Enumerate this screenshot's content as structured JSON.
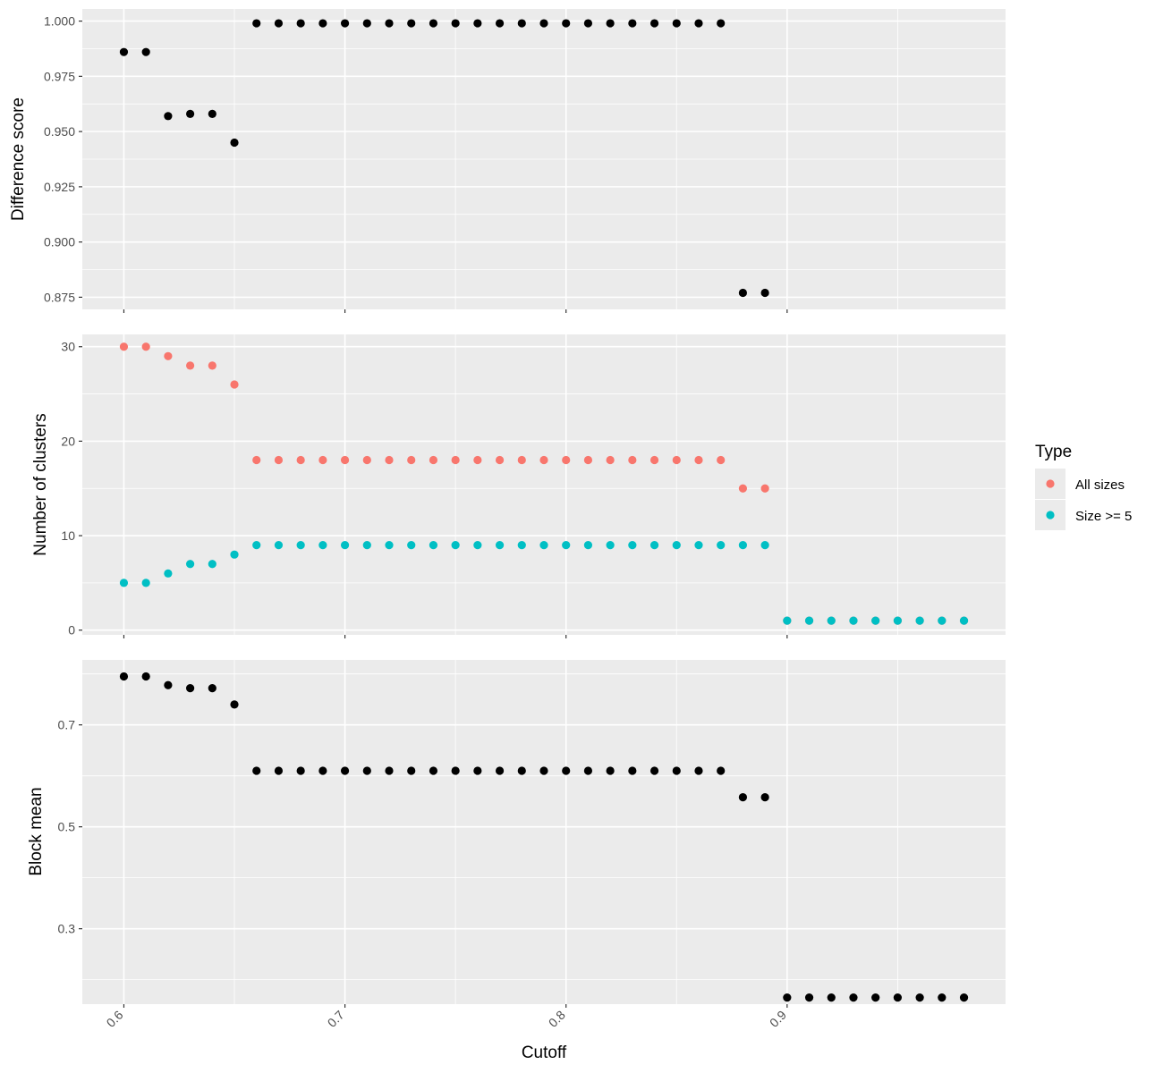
{
  "chart_data": [
    {
      "type": "scatter",
      "ylabel": "Difference score",
      "ylim": [
        0.8695,
        1.0055
      ],
      "yticks": [
        0.875,
        0.9,
        0.925,
        0.95,
        0.975,
        1.0
      ],
      "ytick_labels": [
        "0.875",
        "0.900",
        "0.925",
        "0.950",
        "0.975",
        "1.000"
      ],
      "grid": true,
      "series": [
        {
          "color": "#000000",
          "x": [
            0.6,
            0.61,
            0.62,
            0.63,
            0.64,
            0.65,
            0.66,
            0.67,
            0.68,
            0.69,
            0.7,
            0.71,
            0.72,
            0.73,
            0.74,
            0.75,
            0.76,
            0.77,
            0.78,
            0.79,
            0.8,
            0.81,
            0.82,
            0.83,
            0.84,
            0.85,
            0.86,
            0.87,
            0.88,
            0.89
          ],
          "y": [
            0.986,
            0.986,
            0.957,
            0.958,
            0.958,
            0.945,
            0.999,
            0.999,
            0.999,
            0.999,
            0.999,
            0.999,
            0.999,
            0.999,
            0.999,
            0.999,
            0.999,
            0.999,
            0.999,
            0.999,
            0.999,
            0.999,
            0.999,
            0.999,
            0.999,
            0.999,
            0.999,
            0.999,
            0.877,
            0.877
          ]
        }
      ]
    },
    {
      "type": "scatter",
      "ylabel": "Number of clusters",
      "ylim": [
        -0.5,
        31.3
      ],
      "yticks": [
        0,
        10,
        20,
        30
      ],
      "ytick_labels": [
        "0",
        "10",
        "20",
        "30"
      ],
      "grid": true,
      "legend": {
        "title": "Type",
        "position": "right"
      },
      "series": [
        {
          "name": "All sizes",
          "color": "#F8766D",
          "x": [
            0.6,
            0.61,
            0.62,
            0.63,
            0.64,
            0.65,
            0.66,
            0.67,
            0.68,
            0.69,
            0.7,
            0.71,
            0.72,
            0.73,
            0.74,
            0.75,
            0.76,
            0.77,
            0.78,
            0.79,
            0.8,
            0.81,
            0.82,
            0.83,
            0.84,
            0.85,
            0.86,
            0.87,
            0.88,
            0.89,
            0.9,
            0.91,
            0.92,
            0.93,
            0.94,
            0.95,
            0.96,
            0.97,
            0.98
          ],
          "y": [
            30,
            30,
            29,
            28,
            28,
            26,
            18,
            18,
            18,
            18,
            18,
            18,
            18,
            18,
            18,
            18,
            18,
            18,
            18,
            18,
            18,
            18,
            18,
            18,
            18,
            18,
            18,
            18,
            15,
            15,
            1,
            1,
            1,
            1,
            1,
            1,
            1,
            1,
            1
          ]
        },
        {
          "name": "Size >= 5",
          "color": "#00BFC4",
          "x": [
            0.6,
            0.61,
            0.62,
            0.63,
            0.64,
            0.65,
            0.66,
            0.67,
            0.68,
            0.69,
            0.7,
            0.71,
            0.72,
            0.73,
            0.74,
            0.75,
            0.76,
            0.77,
            0.78,
            0.79,
            0.8,
            0.81,
            0.82,
            0.83,
            0.84,
            0.85,
            0.86,
            0.87,
            0.88,
            0.89,
            0.9,
            0.91,
            0.92,
            0.93,
            0.94,
            0.95,
            0.96,
            0.97,
            0.98
          ],
          "y": [
            5,
            5,
            6,
            7,
            7,
            8,
            9,
            9,
            9,
            9,
            9,
            9,
            9,
            9,
            9,
            9,
            9,
            9,
            9,
            9,
            9,
            9,
            9,
            9,
            9,
            9,
            9,
            9,
            9,
            9,
            1,
            1,
            1,
            1,
            1,
            1,
            1,
            1,
            1
          ]
        }
      ]
    },
    {
      "type": "scatter",
      "xlabel": "Cutoff",
      "ylabel": "Block mean",
      "ylim": [
        0.152,
        0.8275
      ],
      "yticks": [
        0.3,
        0.5,
        0.7
      ],
      "ytick_labels": [
        "0.3",
        "0.5",
        "0.7"
      ],
      "xlim": [
        0.5812,
        0.9988
      ],
      "xticks": [
        0.6,
        0.7,
        0.8,
        0.9
      ],
      "xtick_labels": [
        "0.6",
        "0.7",
        "0.8",
        "0.9"
      ],
      "grid": true,
      "series": [
        {
          "color": "#000000",
          "x": [
            0.6,
            0.61,
            0.62,
            0.63,
            0.64,
            0.65,
            0.66,
            0.67,
            0.68,
            0.69,
            0.7,
            0.71,
            0.72,
            0.73,
            0.74,
            0.75,
            0.76,
            0.77,
            0.78,
            0.79,
            0.8,
            0.81,
            0.82,
            0.83,
            0.84,
            0.85,
            0.86,
            0.87,
            0.88,
            0.89,
            0.9,
            0.91,
            0.92,
            0.93,
            0.94,
            0.95,
            0.96,
            0.97,
            0.98
          ],
          "y": [
            0.795,
            0.795,
            0.778,
            0.772,
            0.772,
            0.74,
            0.61,
            0.61,
            0.61,
            0.61,
            0.61,
            0.61,
            0.61,
            0.61,
            0.61,
            0.61,
            0.61,
            0.61,
            0.61,
            0.61,
            0.61,
            0.61,
            0.61,
            0.61,
            0.61,
            0.61,
            0.61,
            0.61,
            0.558,
            0.558,
            0.165,
            0.165,
            0.165,
            0.165,
            0.165,
            0.165,
            0.165,
            0.165,
            0.165
          ]
        }
      ]
    }
  ]
}
